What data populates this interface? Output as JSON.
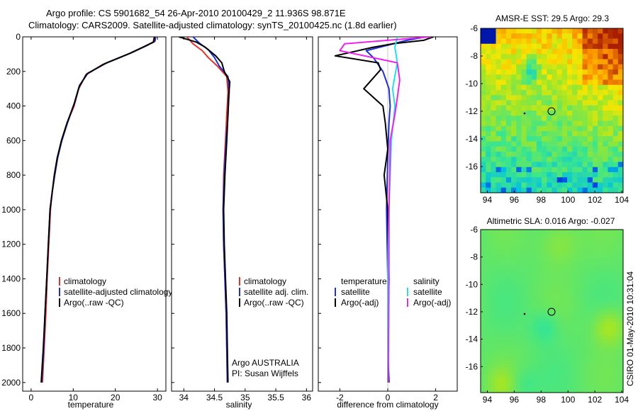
{
  "header": {
    "title_line1": "Argo profile: CS 5901682_54 26-Apr-2010 20100429_2 11.936S 98.871E",
    "title_line2": "Climatology: CARS2009. Satellite-adjusted climatology: synTS_20100425.nc (1.8d earlier)"
  },
  "colors": {
    "climatology": "#e8302a",
    "satellite": "#1f2fd6",
    "argo": "#000000",
    "sal_satellite": "#22e0e8",
    "sal_argo": "#ee22ee"
  },
  "chart_data": [
    {
      "id": "temperature",
      "type": "line",
      "xlabel": "temperature",
      "ylabel": "",
      "xlim": [
        -2,
        32
      ],
      "ylim": [
        2050,
        0
      ],
      "xticks": [
        0,
        10,
        20,
        30
      ],
      "yticks": [
        0,
        200,
        400,
        600,
        800,
        1000,
        1200,
        1400,
        1600,
        1800,
        2000
      ],
      "legend": [
        "climatology",
        "satellite-adjusted climatology",
        "Argo(..raw -QC)"
      ],
      "series": [
        {
          "name": "climatology",
          "color": "#e8302a",
          "points": [
            [
              29.2,
              0
            ],
            [
              29.0,
              30
            ],
            [
              26.5,
              60
            ],
            [
              23,
              100
            ],
            [
              17,
              160
            ],
            [
              13,
              220
            ],
            [
              11.3,
              300
            ],
            [
              10.2,
              400
            ],
            [
              8.5,
              500
            ],
            [
              7.2,
              600
            ],
            [
              6.3,
              700
            ],
            [
              5.6,
              800
            ],
            [
              5.0,
              900
            ],
            [
              4.6,
              1000
            ],
            [
              4.2,
              1200
            ],
            [
              3.8,
              1400
            ],
            [
              3.5,
              1600
            ],
            [
              3.1,
              1800
            ],
            [
              2.7,
              2000
            ]
          ]
        },
        {
          "name": "satellite-adjusted climatology",
          "color": "#1f2fd6",
          "points": [
            [
              29.6,
              0
            ],
            [
              29.4,
              25
            ],
            [
              27.5,
              50
            ],
            [
              24,
              90
            ],
            [
              18,
              150
            ],
            [
              13.5,
              210
            ],
            [
              11.5,
              280
            ],
            [
              10.3,
              380
            ],
            [
              8.6,
              500
            ],
            [
              7.3,
              600
            ],
            [
              6.3,
              700
            ],
            [
              5.6,
              800
            ],
            [
              5.0,
              900
            ],
            [
              4.5,
              1000
            ],
            [
              4.1,
              1200
            ],
            [
              3.7,
              1400
            ],
            [
              3.3,
              1600
            ],
            [
              3.0,
              1800
            ],
            [
              2.5,
              2000
            ]
          ]
        },
        {
          "name": "Argo(..raw -QC)",
          "color": "#000000",
          "points": [
            [
              29.3,
              0
            ],
            [
              29.1,
              30
            ],
            [
              27.0,
              55
            ],
            [
              23.5,
              95
            ],
            [
              17.5,
              155
            ],
            [
              13.2,
              215
            ],
            [
              11.4,
              290
            ],
            [
              10.2,
              390
            ],
            [
              8.5,
              500
            ],
            [
              7.2,
              600
            ],
            [
              6.2,
              700
            ],
            [
              5.5,
              800
            ],
            [
              5.0,
              900
            ],
            [
              4.5,
              1000
            ],
            [
              4.1,
              1200
            ],
            [
              3.7,
              1400
            ],
            [
              3.3,
              1600
            ],
            [
              2.9,
              1800
            ],
            [
              2.4,
              2000
            ]
          ]
        }
      ]
    },
    {
      "id": "salinity",
      "type": "line",
      "xlabel": "salinity",
      "xlim": [
        33.8,
        36.1
      ],
      "ylim": [
        2050,
        0
      ],
      "xticks": [
        34,
        34.5,
        35,
        35.5,
        36
      ],
      "xtick_labels": [
        "34",
        "34.5",
        "35",
        "35.5",
        "36"
      ],
      "legend": [
        "climatology",
        "satellite adj. clim.",
        "Argo(..raw -QC)"
      ],
      "annotation": [
        "Argo AUSTRALIA",
        "PI: Susan Wijffels"
      ],
      "series": [
        {
          "name": "climatology",
          "color": "#e8302a",
          "points": [
            [
              34.05,
              0
            ],
            [
              34.15,
              40
            ],
            [
              34.3,
              80
            ],
            [
              34.4,
              120
            ],
            [
              34.55,
              170
            ],
            [
              34.7,
              230
            ],
            [
              34.72,
              320
            ],
            [
              34.7,
              450
            ],
            [
              34.68,
              600
            ],
            [
              34.65,
              800
            ],
            [
              34.64,
              1000
            ],
            [
              34.65,
              1200
            ],
            [
              34.67,
              1400
            ],
            [
              34.69,
              1600
            ],
            [
              34.7,
              1800
            ],
            [
              34.71,
              2000
            ]
          ]
        },
        {
          "name": "satellite adj. clim.",
          "color": "#1f2fd6",
          "points": [
            [
              34.15,
              0
            ],
            [
              34.25,
              35
            ],
            [
              34.4,
              75
            ],
            [
              34.5,
              120
            ],
            [
              34.58,
              170
            ],
            [
              34.72,
              230
            ],
            [
              34.74,
              320
            ],
            [
              34.72,
              450
            ],
            [
              34.69,
              600
            ],
            [
              34.66,
              800
            ],
            [
              34.64,
              1000
            ],
            [
              34.65,
              1200
            ],
            [
              34.67,
              1400
            ],
            [
              34.69,
              1600
            ],
            [
              34.7,
              1800
            ],
            [
              34.71,
              2000
            ]
          ]
        },
        {
          "name": "Argo(..raw -QC)",
          "color": "#000000",
          "points": [
            [
              33.92,
              0
            ],
            [
              34.2,
              30
            ],
            [
              34.35,
              60
            ],
            [
              34.52,
              110
            ],
            [
              34.62,
              150
            ],
            [
              34.66,
              200
            ],
            [
              34.75,
              260
            ],
            [
              34.73,
              350
            ],
            [
              34.72,
              450
            ],
            [
              34.7,
              600
            ],
            [
              34.67,
              800
            ],
            [
              34.65,
              1000
            ],
            [
              34.66,
              1200
            ],
            [
              34.68,
              1400
            ],
            [
              34.7,
              1600
            ],
            [
              34.71,
              1800
            ],
            [
              34.72,
              2000
            ]
          ]
        }
      ]
    },
    {
      "id": "difference",
      "type": "line",
      "xlabel": "difference from climatology",
      "xlim": [
        -2.9,
        2.9
      ],
      "ylim": [
        2050,
        0
      ],
      "xticks": [
        -2,
        0,
        2
      ],
      "legend_temperature": [
        "temperature",
        "satellite",
        "Argo(-adj)"
      ],
      "legend_salinity": [
        "salinity",
        "satellite",
        "Argo(-adj)"
      ],
      "series": [
        {
          "name": "temperature satellite",
          "color": "#1f2fd6",
          "points": [
            [
              1.6,
              0
            ],
            [
              0.8,
              20
            ],
            [
              -0.9,
              80
            ],
            [
              -0.6,
              120
            ],
            [
              -0.2,
              200
            ],
            [
              0.05,
              300
            ],
            [
              0.1,
              400
            ],
            [
              0.05,
              500
            ],
            [
              0.0,
              700
            ],
            [
              -0.05,
              1000
            ],
            [
              0.0,
              1400
            ],
            [
              0.0,
              2000
            ]
          ]
        },
        {
          "name": "temperature Argo(-adj)",
          "color": "#000000",
          "points": [
            [
              1.9,
              0
            ],
            [
              1.5,
              20
            ],
            [
              0.2,
              40
            ],
            [
              -0.6,
              60
            ],
            [
              -2.2,
              110
            ],
            [
              -0.4,
              150
            ],
            [
              -0.3,
              190
            ],
            [
              -1.0,
              300
            ],
            [
              -0.2,
              400
            ],
            [
              -0.1,
              500
            ],
            [
              0.0,
              650
            ],
            [
              -0.15,
              800
            ],
            [
              0.0,
              1000
            ],
            [
              0.05,
              1400
            ],
            [
              0.0,
              1800
            ],
            [
              0.05,
              2000
            ]
          ]
        },
        {
          "name": "salinity satellite",
          "color": "#22e0e8",
          "points": [
            [
              0.4,
              0
            ],
            [
              0.3,
              60
            ],
            [
              0.4,
              150
            ],
            [
              0.2,
              300
            ],
            [
              0.3,
              400
            ],
            [
              0.15,
              600
            ],
            [
              0.1,
              800
            ],
            [
              0.05,
              1000
            ],
            [
              0.0,
              1400
            ],
            [
              0.0,
              2000
            ]
          ]
        },
        {
          "name": "salinity Argo(-adj)",
          "color": "#ee22ee",
          "points": [
            [
              1.8,
              0
            ],
            [
              -1.8,
              40
            ],
            [
              -2.0,
              80
            ],
            [
              0.4,
              150
            ],
            [
              0.5,
              250
            ],
            [
              0.3,
              450
            ],
            [
              0.1,
              600
            ],
            [
              0.08,
              800
            ],
            [
              0.05,
              1000
            ],
            [
              0.05,
              1400
            ],
            [
              0.02,
              2000
            ]
          ]
        }
      ]
    },
    {
      "id": "sst_map",
      "type": "heatmap",
      "title": "AMSR-E SST: 29.5 Argo: 29.3",
      "xlim": [
        93.5,
        104.1
      ],
      "ylim": [
        -17.9,
        -6.0
      ],
      "xticks": [
        94,
        96,
        98,
        100,
        102,
        104
      ],
      "yticks": [
        -6,
        -8,
        -10,
        -12,
        -14,
        -16
      ],
      "profile_location": [
        98.871,
        -11.936
      ]
    },
    {
      "id": "sla_map",
      "type": "heatmap",
      "title": "Altimetric SLA: 0.016 Argo: -0.027",
      "xlim": [
        93.5,
        104.1
      ],
      "ylim": [
        -17.9,
        -6.0
      ],
      "xticks": [
        94,
        96,
        98,
        100,
        102,
        104
      ],
      "yticks": [
        -6,
        -8,
        -10,
        -12,
        -14,
        -16
      ],
      "profile_location": [
        98.871,
        -11.936
      ]
    }
  ],
  "footer": {
    "credit": "CSIRO 01-May-2010 10:31:04"
  }
}
